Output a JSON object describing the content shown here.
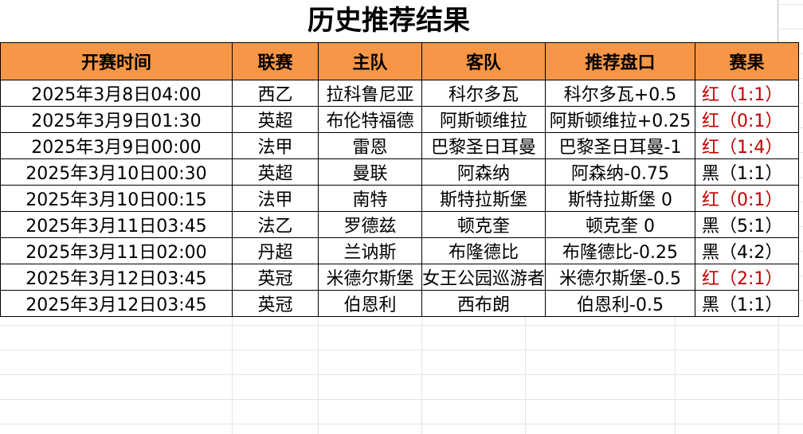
{
  "header": {
    "title": "历史推荐结果"
  },
  "table": {
    "columns": [
      "开赛时间",
      "联赛",
      "主队",
      "客队",
      "推荐盘口",
      "赛果"
    ],
    "header_color": "#f79646",
    "rows": [
      [
        "2025年3月8日04:00",
        "西乙",
        "拉科鲁尼亚",
        "科尔多瓦",
        "科尔多瓦+0.5",
        "红（1:1）"
      ],
      [
        "2025年3月9日01:30",
        "英超",
        "布伦特福德",
        "阿斯顿维拉",
        "阿斯顿维拉+0.25",
        "红（0:1）"
      ],
      [
        "2025年3月9日00:00",
        "法甲",
        "雷恩",
        "巴黎圣日耳曼",
        "巴黎圣日耳曼-1",
        "红（1:4）"
      ],
      [
        "2025年3月10日00:30",
        "英超",
        "曼联",
        "阿森纳",
        "阿森纳-0.75",
        "黑（1:1）"
      ],
      [
        "2025年3月10日00:15",
        "法甲",
        "南特",
        "斯特拉斯堡",
        "斯特拉斯堡 0",
        "红（0:1）"
      ],
      [
        "2025年3月11日03:45",
        "法乙",
        "罗德兹",
        "顿克奎",
        "顿克奎 0",
        "黑（5:1）"
      ],
      [
        "2025年3月11日02:00",
        "丹超",
        "兰讷斯",
        "布隆德比",
        "布隆德比-0.25",
        "黑（4:2）"
      ],
      [
        "2025年3月12日03:45",
        "英冠",
        "米德尔斯堡",
        "女王公园巡游者",
        "米德尔斯堡-0.5",
        "红（2:1）"
      ],
      [
        "2025年3月12日03:45",
        "英冠",
        "伯恩利",
        "西布朗",
        "伯恩利-0.5",
        "黑（1:1）"
      ]
    ],
    "result_colors": [
      "#c00000",
      "#c00000",
      "#c00000",
      "#000000",
      "#c00000",
      "#000000",
      "#000000",
      "#c00000",
      "#000000"
    ]
  }
}
